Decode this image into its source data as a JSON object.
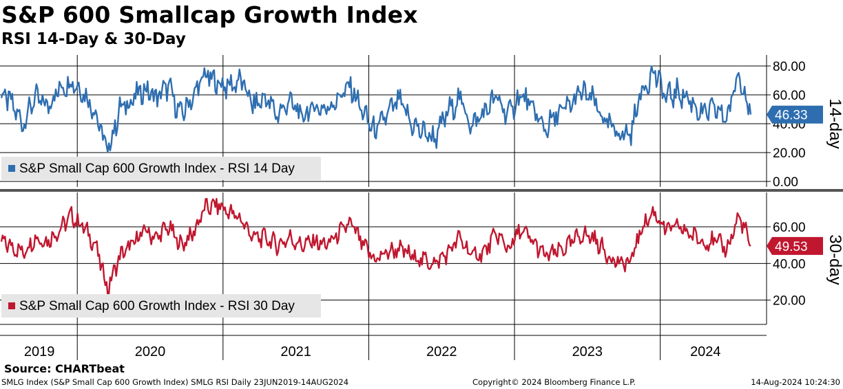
{
  "header": {
    "title": "S&P 600 Smallcap Growth Index",
    "subtitle": "RSI 14-Day & 30-Day"
  },
  "footer": {
    "source": "Source: CHARTbeat",
    "description": "SMLG Index (S&P Small Cap 600 Growth Index) SMLG RSI  Daily 23JUN2019-14AUG2024",
    "copyright": "Copyright© 2024 Bloomberg Finance L.P.",
    "timestamp": "14-Aug-2024 10:24:30"
  },
  "colors": {
    "rsi14": "#2e6eb0",
    "rsi30": "#c0172f",
    "legend_bg": "#e6e6e6",
    "grid": "#000000"
  },
  "chart_data": [
    {
      "type": "line",
      "panel_label": "14-day",
      "legend": "S&P Small Cap 600 Growth Index - RSI 14 Day",
      "last_value_label": "46.33",
      "ylim": [
        0,
        80
      ],
      "y_ticks": [
        "80.00",
        "60.00",
        "40.00",
        "20.00",
        "0.00"
      ],
      "grid": true,
      "legend_position": "bottom-left",
      "x_ticks": [
        "2019",
        "2020",
        "2021",
        "2022",
        "2023",
        "2024"
      ],
      "series": [
        {
          "name": "S&P Small Cap 600 Growth Index - RSI 14 Day",
          "x": [
            "2019-06",
            "2019-07",
            "2019-08",
            "2019-09",
            "2019-10",
            "2019-11",
            "2019-12",
            "2020-01",
            "2020-02",
            "2020-03",
            "2020-04",
            "2020-05",
            "2020-06",
            "2020-07",
            "2020-08",
            "2020-09",
            "2020-10",
            "2020-11",
            "2020-12",
            "2021-01",
            "2021-02",
            "2021-03",
            "2021-04",
            "2021-05",
            "2021-06",
            "2021-07",
            "2021-08",
            "2021-09",
            "2021-10",
            "2021-11",
            "2021-12",
            "2022-01",
            "2022-02",
            "2022-03",
            "2022-04",
            "2022-05",
            "2022-06",
            "2022-07",
            "2022-08",
            "2022-09",
            "2022-10",
            "2022-11",
            "2022-12",
            "2023-01",
            "2023-02",
            "2023-03",
            "2023-04",
            "2023-05",
            "2023-06",
            "2023-07",
            "2023-08",
            "2023-09",
            "2023-10",
            "2023-11",
            "2023-12",
            "2024-01",
            "2024-02",
            "2024-03",
            "2024-04",
            "2024-05",
            "2024-06",
            "2024-07",
            "2024-08"
          ],
          "values": [
            62,
            55,
            40,
            58,
            52,
            64,
            70,
            62,
            48,
            20,
            50,
            56,
            64,
            58,
            66,
            46,
            58,
            74,
            68,
            66,
            70,
            52,
            58,
            46,
            56,
            44,
            52,
            50,
            58,
            66,
            48,
            34,
            46,
            56,
            40,
            34,
            30,
            48,
            58,
            38,
            48,
            58,
            46,
            60,
            50,
            36,
            46,
            52,
            62,
            56,
            40,
            34,
            32,
            64,
            76,
            58,
            62,
            56,
            46,
            50,
            44,
            76,
            46.33
          ]
        }
      ]
    },
    {
      "type": "line",
      "panel_label": "30-day",
      "legend": "S&P Small Cap 600 Growth Index - RSI 30 Day",
      "last_value_label": "49.53",
      "ylim": [
        10,
        80
      ],
      "y_ticks": [
        "60.00",
        "40.00",
        "20.00"
      ],
      "grid": true,
      "legend_position": "bottom-left",
      "x_ticks": [
        "2019",
        "2020",
        "2021",
        "2022",
        "2023",
        "2024"
      ],
      "series": [
        {
          "name": "S&P Small Cap 600 Growth Index - RSI 30 Day",
          "x": [
            "2019-06",
            "2019-07",
            "2019-08",
            "2019-09",
            "2019-10",
            "2019-11",
            "2019-12",
            "2020-01",
            "2020-02",
            "2020-03",
            "2020-04",
            "2020-05",
            "2020-06",
            "2020-07",
            "2020-08",
            "2020-09",
            "2020-10",
            "2020-11",
            "2020-12",
            "2021-01",
            "2021-02",
            "2021-03",
            "2021-04",
            "2021-05",
            "2021-06",
            "2021-07",
            "2021-08",
            "2021-09",
            "2021-10",
            "2021-11",
            "2021-12",
            "2022-01",
            "2022-02",
            "2022-03",
            "2022-04",
            "2022-05",
            "2022-06",
            "2022-07",
            "2022-08",
            "2022-09",
            "2022-10",
            "2022-11",
            "2022-12",
            "2023-01",
            "2023-02",
            "2023-03",
            "2023-04",
            "2023-05",
            "2023-06",
            "2023-07",
            "2023-08",
            "2023-09",
            "2023-10",
            "2023-11",
            "2023-12",
            "2024-01",
            "2024-02",
            "2024-03",
            "2024-04",
            "2024-05",
            "2024-06",
            "2024-07",
            "2024-08"
          ],
          "values": [
            52,
            50,
            46,
            54,
            52,
            58,
            66,
            60,
            50,
            26,
            44,
            50,
            58,
            54,
            60,
            50,
            56,
            70,
            72,
            68,
            64,
            54,
            54,
            50,
            54,
            50,
            52,
            50,
            56,
            62,
            50,
            42,
            46,
            48,
            44,
            42,
            40,
            46,
            54,
            44,
            46,
            56,
            48,
            58,
            52,
            44,
            46,
            50,
            56,
            54,
            46,
            40,
            40,
            60,
            68,
            58,
            60,
            56,
            52,
            52,
            48,
            66,
            49.53
          ]
        }
      ]
    }
  ]
}
